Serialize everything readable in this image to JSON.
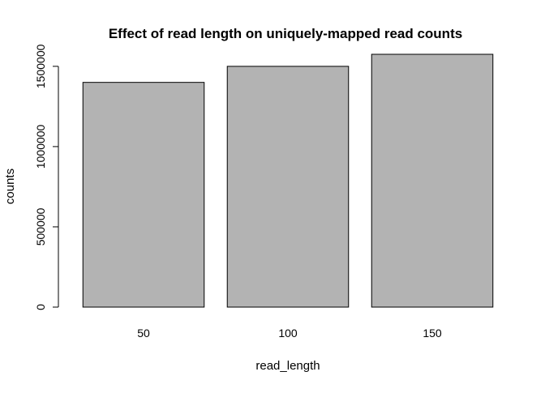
{
  "chart_data": {
    "type": "bar",
    "title": "Effect of read length on uniquely-mapped read counts",
    "xlabel": "read_length",
    "ylabel": "counts",
    "categories": [
      "50",
      "100",
      "150"
    ],
    "values": [
      1400000,
      1500000,
      1575000
    ],
    "ylim": [
      0,
      1575000
    ],
    "yticks": [
      0,
      500000,
      1000000,
      1500000
    ],
    "ytick_labels": [
      "0",
      "500000",
      "1000000",
      "1500000"
    ],
    "grid": false,
    "legend": "none",
    "colors": {
      "bar_fill": "#b3b3b3",
      "bar_stroke": "#000000",
      "axis": "#000000"
    }
  }
}
